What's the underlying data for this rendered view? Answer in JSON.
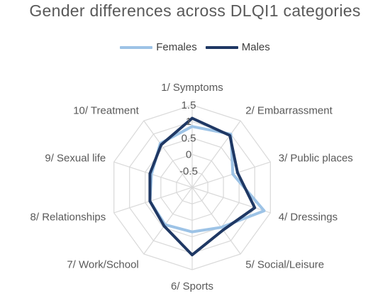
{
  "chart_data": {
    "type": "radar",
    "title": "Gender differences across DLQI1 categories",
    "categories": [
      "1/ Symptoms",
      "2/ Embarrassment",
      "3/ Public places",
      "4/ Dressings",
      "5/ Social/Leisure",
      "6/ Sports",
      "7/ Work/School",
      "8/ Relationships",
      "9/ Sexual life",
      "10/ Treatment"
    ],
    "ticks": [
      "1.5",
      "1",
      "0.5",
      "0",
      "-0.5"
    ],
    "rlim": [
      -1,
      1.5
    ],
    "series": [
      {
        "name": "Females",
        "color": "#9dc3e6",
        "values": [
          0.85,
          1.0,
          0.3,
          1.3,
          0.5,
          0.35,
          0.4,
          0.35,
          0.3,
          0.65
        ]
      },
      {
        "name": "Males",
        "color": "#1f3864",
        "values": [
          1.1,
          0.95,
          0.45,
          1.0,
          0.6,
          1.05,
          0.45,
          0.35,
          0.35,
          0.6
        ]
      }
    ],
    "legend_position": "top",
    "grid": true
  }
}
